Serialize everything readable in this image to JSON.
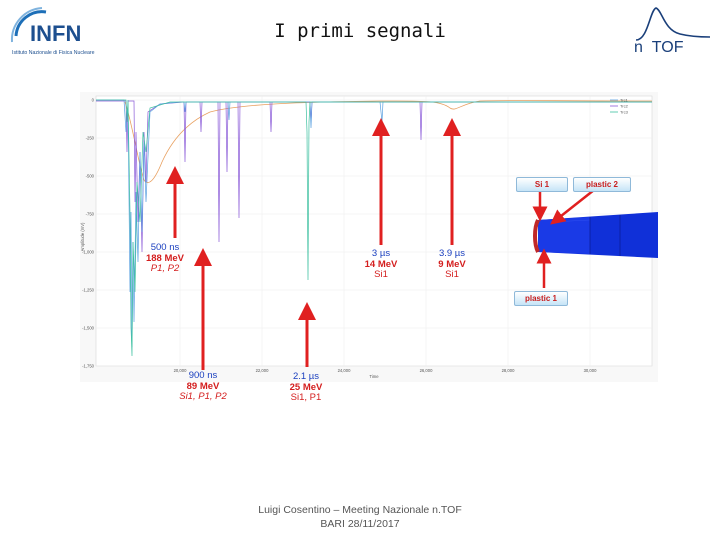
{
  "slide": {
    "title": "I primi segnali",
    "footer_line1": "Luigi Cosentino – Meeting Nazionale n.TOF",
    "footer_line2": "BARI 28/11/2017"
  },
  "logos": {
    "infn_text": "INFN",
    "infn_subtitle": "Istituto Nazionale di Fisica Nucleare",
    "ntof_text": "n_TOF"
  },
  "plot": {
    "legend": [
      "Trc1",
      "Trc2",
      "Trc3"
    ],
    "ylabel": "Amplitude (mV)",
    "xlabel": "Time",
    "y_ticks": [
      "0",
      "-250",
      "-500",
      "-750",
      "-1,000",
      "-1,250",
      "-1,500",
      "-1,750"
    ],
    "x_ticks": [
      "20,000",
      "22,000",
      "24,000",
      "26,000",
      "28,000",
      "30,000"
    ]
  },
  "annotations": [
    {
      "time": "500 ns",
      "energy": "188 MeV",
      "particles": "P1, P2"
    },
    {
      "time": "900 ns",
      "energy": "89 MeV",
      "particles": "Si1, P1, P2"
    },
    {
      "time": "2.1 µs",
      "energy": "25 MeV",
      "particles": "Si1, P1"
    },
    {
      "time": "3 µs",
      "energy": "14 MeV",
      "particles": "Si1"
    },
    {
      "time": "3.9 µs",
      "energy": "9 MeV",
      "particles": "Si1"
    }
  ],
  "detector": {
    "si1_label": "Si 1",
    "plastic2_label": "plastic 2",
    "plastic1_label": "plastic 1"
  },
  "colors": {
    "arrow": "#e02020",
    "trace_blue": "#5aa0e0",
    "trace_purple": "#8a5ad8",
    "trace_green": "#3cc0a0",
    "trace_orange": "#e8a060",
    "detector_blue": "#1030d8"
  }
}
